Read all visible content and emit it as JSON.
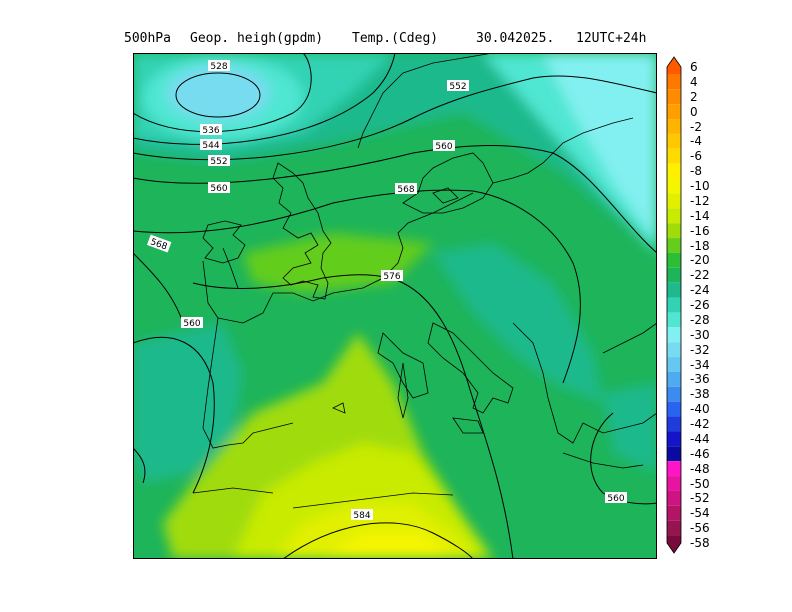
{
  "header": {
    "level": "500hPa",
    "field1": "Geop. heigh(gpdm)",
    "field2": "Temp.(Cdeg)",
    "date": "30.042025.",
    "time": "12UTC+24h"
  },
  "colorbar": {
    "levels": [
      "6",
      "4",
      "2",
      "0",
      "-2",
      "-4",
      "-6",
      "-8",
      "-10",
      "-12",
      "-14",
      "-16",
      "-18",
      "-20",
      "-22",
      "-24",
      "-26",
      "-28",
      "-30",
      "-32",
      "-34",
      "-36",
      "-38",
      "-40",
      "-42",
      "-44",
      "-46",
      "-48",
      "-50",
      "-52",
      "-54",
      "-56",
      "-58"
    ],
    "colors": [
      "#ff5a00",
      "#ff7800",
      "#ff8c00",
      "#ffa000",
      "#ffb400",
      "#ffc800",
      "#ffdc00",
      "#fff000",
      "#f5f500",
      "#e1f000",
      "#c8eb00",
      "#a0dc0a",
      "#64cd1e",
      "#2dbe37",
      "#1eb45a",
      "#1eb98c",
      "#32d2b4",
      "#50e6d2",
      "#82f0f0",
      "#78dcf0",
      "#64c8f0",
      "#50aaf0",
      "#3c8cf0",
      "#2864f0",
      "#1e3cdc",
      "#1414c8",
      "#0a0aa0",
      "#ff14c8",
      "#e614a0",
      "#cd1482",
      "#b41464",
      "#961450",
      "#780a3c"
    ]
  },
  "contour_labels": [
    {
      "text": "528"
    },
    {
      "text": "536"
    },
    {
      "text": "544"
    },
    {
      "text": "552"
    },
    {
      "text": "552"
    },
    {
      "text": "560"
    },
    {
      "text": "560"
    },
    {
      "text": "560"
    },
    {
      "text": "560"
    },
    {
      "text": "568"
    },
    {
      "text": "568"
    },
    {
      "text": "576"
    },
    {
      "text": "584"
    }
  ]
}
